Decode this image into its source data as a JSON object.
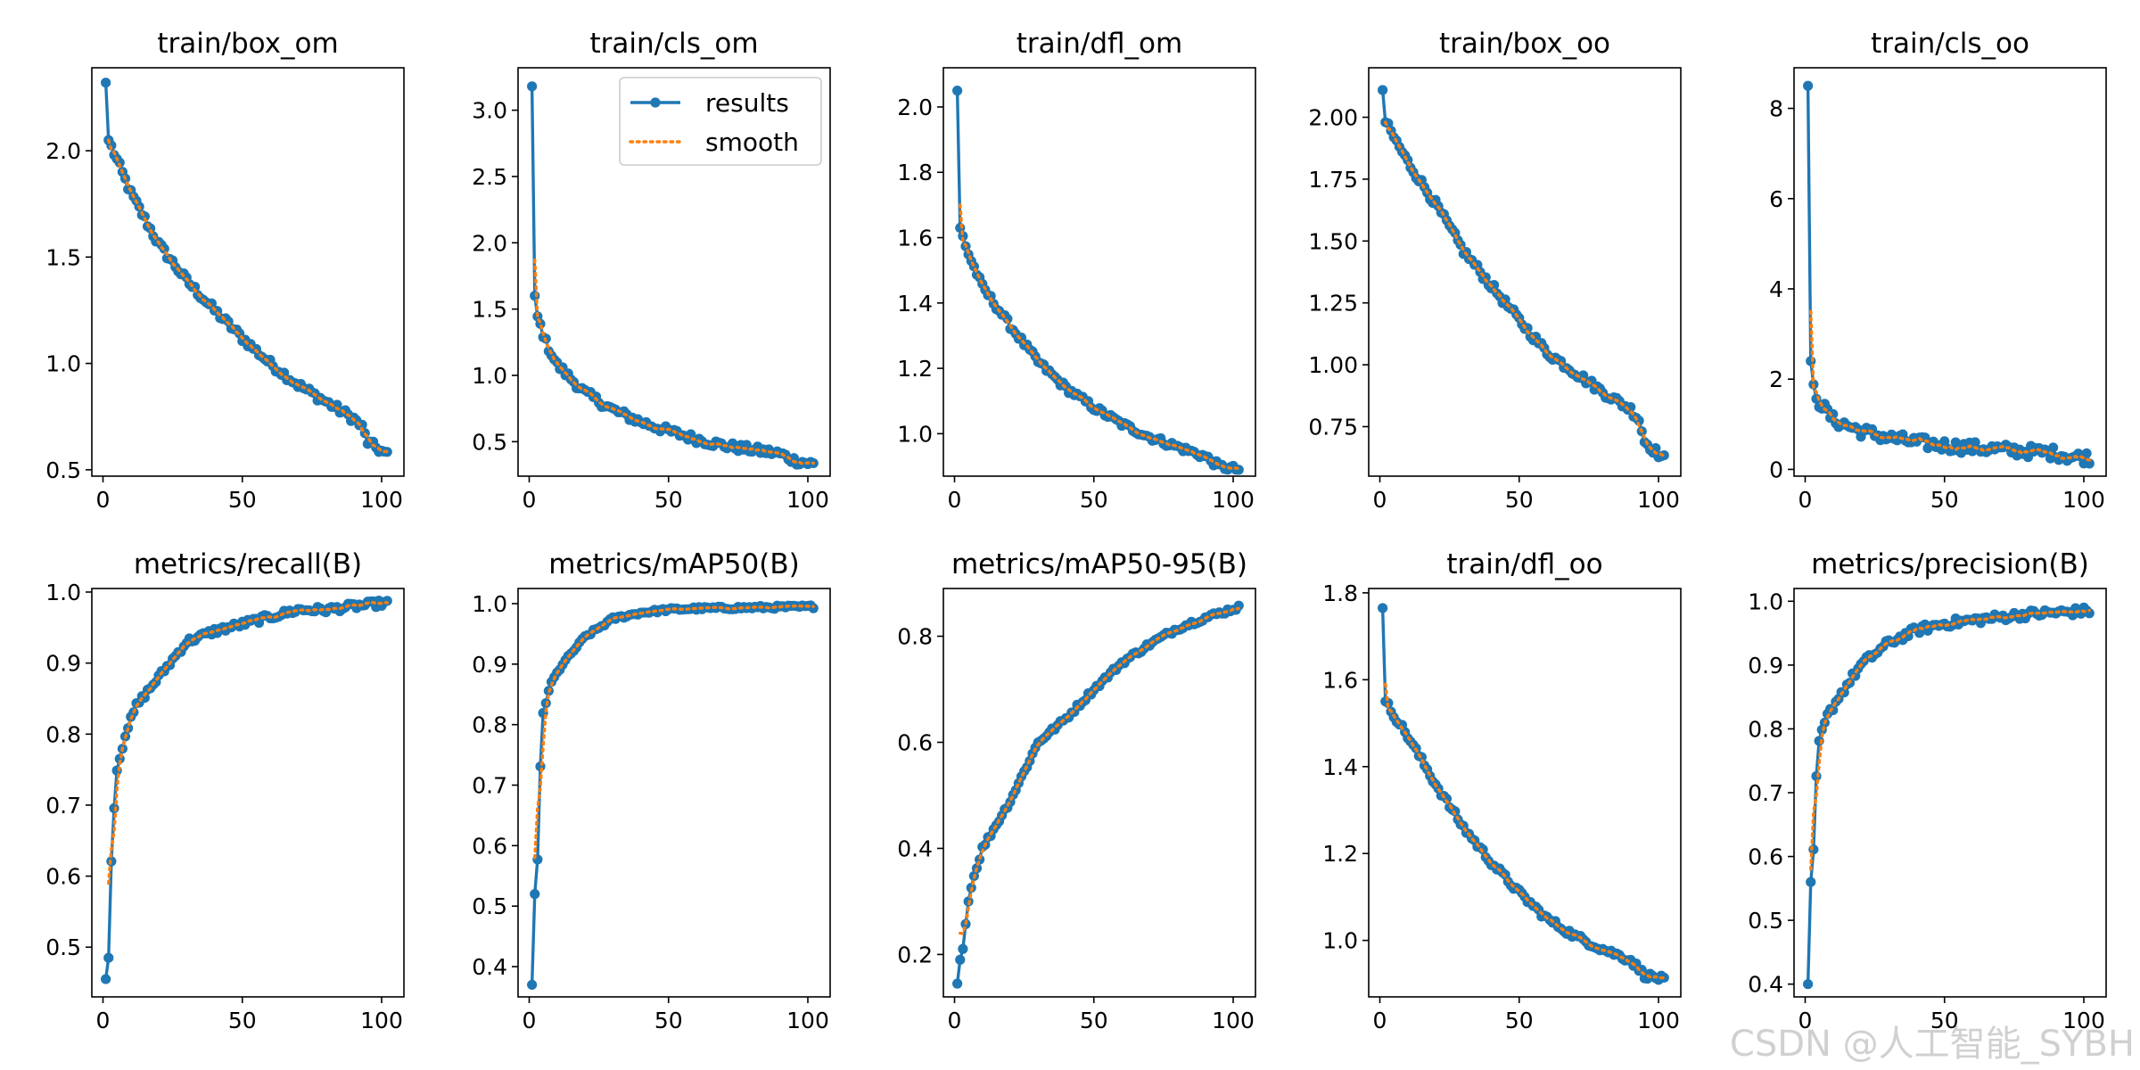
{
  "colors": {
    "results": "#1f77b4",
    "smooth": "#ff7f0e"
  },
  "legend": {
    "position": "top-right",
    "panel": 1,
    "labels": [
      "results",
      "smooth"
    ]
  },
  "watermark": "CSDN @人工智能_SYBH",
  "chart_data": [
    {
      "type": "line",
      "title": "train/box_om",
      "xlim": [
        -4,
        108
      ],
      "xticks": [
        0,
        50,
        100
      ],
      "ylim": [
        0.47,
        2.39
      ],
      "yticks": [
        0.5,
        1.0,
        1.5,
        2.0
      ],
      "curve": {
        "start": 2.32,
        "knots": [
          [
            2,
            2.05
          ],
          [
            10,
            1.8
          ],
          [
            20,
            1.56
          ],
          [
            30,
            1.39
          ],
          [
            40,
            1.25
          ],
          [
            50,
            1.12
          ],
          [
            60,
            1.0
          ],
          [
            70,
            0.9
          ],
          [
            80,
            0.82
          ],
          [
            90,
            0.74
          ],
          [
            93,
            0.7
          ],
          [
            95,
            0.63
          ],
          [
            102,
            0.57
          ]
        ]
      },
      "noise": 0.01,
      "smooth_start": 2.05
    },
    {
      "type": "line",
      "title": "train/cls_om",
      "xlim": [
        -4,
        108
      ],
      "xticks": [
        0,
        50,
        100
      ],
      "ylim": [
        0.24,
        3.32
      ],
      "yticks": [
        0.5,
        1.0,
        1.5,
        2.0,
        2.5,
        3.0
      ],
      "curve": {
        "start": 3.18,
        "knots": [
          [
            2,
            1.6
          ],
          [
            3,
            1.44
          ],
          [
            6,
            1.25
          ],
          [
            10,
            1.08
          ],
          [
            20,
            0.87
          ],
          [
            30,
            0.74
          ],
          [
            40,
            0.65
          ],
          [
            50,
            0.58
          ],
          [
            60,
            0.52
          ],
          [
            70,
            0.47
          ],
          [
            80,
            0.44
          ],
          [
            90,
            0.41
          ],
          [
            95,
            0.36
          ],
          [
            102,
            0.33
          ]
        ]
      },
      "noise": 0.01,
      "smooth_start": 1.87
    },
    {
      "type": "line",
      "title": "train/dfl_om",
      "xlim": [
        -4,
        108
      ],
      "xticks": [
        0,
        50,
        100
      ],
      "ylim": [
        0.87,
        2.12
      ],
      "yticks": [
        1.0,
        1.2,
        1.4,
        1.6,
        1.8,
        2.0
      ],
      "curve": {
        "start": 2.05,
        "knots": [
          [
            2,
            1.63
          ],
          [
            5,
            1.55
          ],
          [
            10,
            1.45
          ],
          [
            20,
            1.33
          ],
          [
            30,
            1.22
          ],
          [
            40,
            1.14
          ],
          [
            50,
            1.08
          ],
          [
            60,
            1.03
          ],
          [
            70,
            0.99
          ],
          [
            80,
            0.96
          ],
          [
            90,
            0.93
          ],
          [
            95,
            0.9
          ],
          [
            102,
            0.89
          ]
        ]
      },
      "noise": 0.008,
      "smooth_start": 1.7
    },
    {
      "type": "line",
      "title": "train/box_oo",
      "xlim": [
        -4,
        108
      ],
      "xticks": [
        0,
        50,
        100
      ],
      "ylim": [
        0.55,
        2.2
      ],
      "yticks": [
        0.75,
        1.0,
        1.25,
        1.5,
        1.75,
        2.0
      ],
      "curve": {
        "start": 2.11,
        "knots": [
          [
            2,
            1.98
          ],
          [
            10,
            1.82
          ],
          [
            20,
            1.65
          ],
          [
            30,
            1.46
          ],
          [
            40,
            1.32
          ],
          [
            50,
            1.18
          ],
          [
            60,
            1.05
          ],
          [
            70,
            0.97
          ],
          [
            80,
            0.89
          ],
          [
            90,
            0.82
          ],
          [
            93,
            0.78
          ],
          [
            95,
            0.69
          ],
          [
            102,
            0.62
          ]
        ]
      },
      "noise": 0.01,
      "smooth_start": 1.98
    },
    {
      "type": "line",
      "title": "train/cls_oo",
      "xlim": [
        -4,
        108
      ],
      "xticks": [
        0,
        50,
        100
      ],
      "ylim": [
        -0.15,
        8.9
      ],
      "yticks": [
        0,
        2,
        4,
        6,
        8
      ],
      "curve": {
        "start": 8.5,
        "knots": [
          [
            2,
            2.4
          ],
          [
            3,
            1.8
          ],
          [
            5,
            1.5
          ],
          [
            10,
            1.1
          ],
          [
            20,
            0.85
          ],
          [
            30,
            0.7
          ],
          [
            40,
            0.6
          ],
          [
            50,
            0.53
          ],
          [
            60,
            0.48
          ],
          [
            70,
            0.44
          ],
          [
            80,
            0.4
          ],
          [
            90,
            0.36
          ],
          [
            95,
            0.28
          ],
          [
            102,
            0.26
          ]
        ]
      },
      "noise": 0.015,
      "smooth_start": 3.5
    },
    {
      "type": "line",
      "title": "metrics/recall(B)",
      "xlim": [
        -4,
        108
      ],
      "xticks": [
        0,
        50,
        100
      ],
      "ylim": [
        0.43,
        1.005
      ],
      "yticks": [
        0.5,
        0.6,
        0.7,
        0.8,
        0.9,
        1.0
      ],
      "curve": {
        "start": 0.455,
        "knots": [
          [
            2,
            0.485
          ],
          [
            3,
            0.62
          ],
          [
            4,
            0.7
          ],
          [
            5,
            0.75
          ],
          [
            8,
            0.8
          ],
          [
            12,
            0.84
          ],
          [
            20,
            0.88
          ],
          [
            30,
            0.93
          ],
          [
            40,
            0.945
          ],
          [
            50,
            0.955
          ],
          [
            60,
            0.965
          ],
          [
            70,
            0.975
          ],
          [
            80,
            0.975
          ],
          [
            90,
            0.98
          ],
          [
            102,
            0.985
          ]
        ]
      },
      "noise": 0.008,
      "smooth_start": 0.59
    },
    {
      "type": "line",
      "title": "metrics/mAP50(B)",
      "xlim": [
        -4,
        108
      ],
      "xticks": [
        0,
        50,
        100
      ],
      "ylim": [
        0.35,
        1.025
      ],
      "yticks": [
        0.4,
        0.5,
        0.6,
        0.7,
        0.8,
        0.9,
        1.0
      ],
      "curve": {
        "start": 0.37,
        "knots": [
          [
            2,
            0.52
          ],
          [
            3,
            0.575
          ],
          [
            4,
            0.73
          ],
          [
            5,
            0.82
          ],
          [
            8,
            0.87
          ],
          [
            12,
            0.9
          ],
          [
            20,
            0.945
          ],
          [
            30,
            0.975
          ],
          [
            40,
            0.985
          ],
          [
            50,
            0.99
          ],
          [
            60,
            0.992
          ],
          [
            102,
            0.995
          ]
        ]
      },
      "noise": 0.004,
      "smooth_start": 0.58
    },
    {
      "type": "line",
      "title": "metrics/mAP50-95(B)",
      "xlim": [
        -4,
        108
      ],
      "xticks": [
        0,
        50,
        100
      ],
      "ylim": [
        0.12,
        0.89
      ],
      "yticks": [
        0.2,
        0.4,
        0.6,
        0.8
      ],
      "curve": {
        "start": 0.145,
        "knots": [
          [
            2,
            0.19
          ],
          [
            3,
            0.215
          ],
          [
            5,
            0.3
          ],
          [
            6,
            0.33
          ],
          [
            10,
            0.4
          ],
          [
            20,
            0.49
          ],
          [
            30,
            0.6
          ],
          [
            40,
            0.645
          ],
          [
            50,
            0.7
          ],
          [
            60,
            0.75
          ],
          [
            70,
            0.785
          ],
          [
            80,
            0.815
          ],
          [
            90,
            0.835
          ],
          [
            102,
            0.855
          ]
        ]
      },
      "noise": 0.006,
      "smooth_start": 0.24
    },
    {
      "type": "line",
      "title": "train/dfl_oo",
      "xlim": [
        -4,
        108
      ],
      "xticks": [
        0,
        50,
        100
      ],
      "ylim": [
        0.87,
        1.81
      ],
      "yticks": [
        1.0,
        1.2,
        1.4,
        1.6,
        1.8
      ],
      "curve": {
        "start": 1.765,
        "knots": [
          [
            2,
            1.55
          ],
          [
            5,
            1.52
          ],
          [
            10,
            1.47
          ],
          [
            20,
            1.36
          ],
          [
            30,
            1.26
          ],
          [
            40,
            1.18
          ],
          [
            50,
            1.11
          ],
          [
            60,
            1.05
          ],
          [
            70,
            1.01
          ],
          [
            80,
            0.98
          ],
          [
            90,
            0.955
          ],
          [
            95,
            0.92
          ],
          [
            102,
            0.91
          ]
        ]
      },
      "noise": 0.008,
      "smooth_start": 1.59
    },
    {
      "type": "line",
      "title": "metrics/precision(B)",
      "xlim": [
        -4,
        108
      ],
      "xticks": [
        0,
        50,
        100
      ],
      "ylim": [
        0.38,
        1.02
      ],
      "yticks": [
        0.4,
        0.5,
        0.6,
        0.7,
        0.8,
        0.9,
        1.0
      ],
      "curve": {
        "start": 0.4,
        "knots": [
          [
            2,
            0.56
          ],
          [
            3,
            0.605
          ],
          [
            4,
            0.72
          ],
          [
            5,
            0.78
          ],
          [
            8,
            0.82
          ],
          [
            12,
            0.85
          ],
          [
            20,
            0.9
          ],
          [
            30,
            0.935
          ],
          [
            40,
            0.955
          ],
          [
            50,
            0.965
          ],
          [
            60,
            0.97
          ],
          [
            70,
            0.975
          ],
          [
            80,
            0.98
          ],
          [
            90,
            0.982
          ],
          [
            102,
            0.985
          ]
        ]
      },
      "noise": 0.01,
      "smooth_start": 0.58
    }
  ]
}
